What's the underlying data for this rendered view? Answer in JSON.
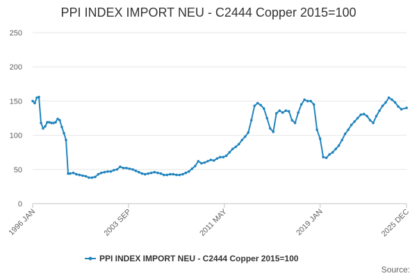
{
  "chart_data": {
    "type": "line",
    "title": "PPI INDEX IMPORT NEU - C2444 Copper 2015=100",
    "xlabel": "",
    "ylabel": "",
    "ylim": [
      0,
      250
    ],
    "y_ticks": [
      "0",
      "50",
      "100",
      "150",
      "200",
      "250"
    ],
    "x_tick_labels": [
      "1996 JAN",
      "2003 SEP",
      "2011 MAY",
      "2019 JAN",
      "2025 DEC"
    ],
    "x_tick_dates": [
      "1996-01",
      "2003-09",
      "2011-05",
      "2019-01",
      "2025-12"
    ],
    "x_range": [
      "1996-01",
      "2025-12"
    ],
    "grid": true,
    "legend_position": "bottom-center",
    "series_color": "#1f83bd",
    "series": [
      {
        "name": "PPI INDEX IMPORT NEU - C2444 Copper 2015=100",
        "points": [
          [
            "1996-01",
            150
          ],
          [
            "1996-03",
            147
          ],
          [
            "1996-05",
            155
          ],
          [
            "1996-07",
            156
          ],
          [
            "1996-09",
            118
          ],
          [
            "1996-11",
            110
          ],
          [
            "1997-01",
            113
          ],
          [
            "1997-03",
            119
          ],
          [
            "1997-05",
            119
          ],
          [
            "1997-07",
            118
          ],
          [
            "1997-09",
            118
          ],
          [
            "1997-11",
            119
          ],
          [
            "1998-01",
            124
          ],
          [
            "1998-03",
            122
          ],
          [
            "1998-05",
            112
          ],
          [
            "1998-07",
            103
          ],
          [
            "1998-09",
            93
          ],
          [
            "1998-11",
            44
          ],
          [
            "1999-01",
            44
          ],
          [
            "1999-04",
            45
          ],
          [
            "1999-07",
            43
          ],
          [
            "1999-10",
            42
          ],
          [
            "2000-01",
            41
          ],
          [
            "2000-04",
            40
          ],
          [
            "2000-07",
            38
          ],
          [
            "2000-10",
            38
          ],
          [
            "2001-01",
            39
          ],
          [
            "2001-04",
            43
          ],
          [
            "2001-07",
            45
          ],
          [
            "2001-10",
            46
          ],
          [
            "2002-01",
            47
          ],
          [
            "2002-04",
            47
          ],
          [
            "2002-07",
            49
          ],
          [
            "2002-10",
            50
          ],
          [
            "2003-01",
            54
          ],
          [
            "2003-04",
            52
          ],
          [
            "2003-07",
            52
          ],
          [
            "2003-10",
            51
          ],
          [
            "2004-01",
            50
          ],
          [
            "2004-04",
            48
          ],
          [
            "2004-07",
            46
          ],
          [
            "2004-10",
            44
          ],
          [
            "2005-01",
            43
          ],
          [
            "2005-04",
            44
          ],
          [
            "2005-07",
            45
          ],
          [
            "2005-10",
            46
          ],
          [
            "2006-01",
            45
          ],
          [
            "2006-04",
            44
          ],
          [
            "2006-07",
            42
          ],
          [
            "2006-10",
            42
          ],
          [
            "2007-01",
            43
          ],
          [
            "2007-04",
            43
          ],
          [
            "2007-07",
            42
          ],
          [
            "2007-10",
            42
          ],
          [
            "2008-01",
            43
          ],
          [
            "2008-04",
            45
          ],
          [
            "2008-07",
            47
          ],
          [
            "2008-10",
            51
          ],
          [
            "2009-01",
            55
          ],
          [
            "2009-04",
            62
          ],
          [
            "2009-07",
            59
          ],
          [
            "2009-10",
            60
          ],
          [
            "2010-01",
            62
          ],
          [
            "2010-04",
            64
          ],
          [
            "2010-07",
            63
          ],
          [
            "2010-10",
            66
          ],
          [
            "2011-01",
            68
          ],
          [
            "2011-04",
            68
          ],
          [
            "2011-07",
            70
          ],
          [
            "2011-10",
            75
          ],
          [
            "2012-01",
            80
          ],
          [
            "2012-04",
            83
          ],
          [
            "2012-07",
            87
          ],
          [
            "2012-10",
            93
          ],
          [
            "2013-01",
            98
          ],
          [
            "2013-04",
            104
          ],
          [
            "2013-07",
            122
          ],
          [
            "2013-10",
            143
          ],
          [
            "2014-01",
            147
          ],
          [
            "2014-04",
            144
          ],
          [
            "2014-07",
            139
          ],
          [
            "2014-10",
            125
          ],
          [
            "2015-01",
            110
          ],
          [
            "2015-04",
            105
          ],
          [
            "2015-07",
            132
          ],
          [
            "2015-10",
            136
          ],
          [
            "2016-01",
            133
          ],
          [
            "2016-04",
            136
          ],
          [
            "2016-07",
            135
          ],
          [
            "2016-10",
            122
          ],
          [
            "2017-01",
            118
          ],
          [
            "2017-04",
            133
          ],
          [
            "2017-07",
            145
          ],
          [
            "2017-10",
            152
          ],
          [
            "2018-01",
            150
          ],
          [
            "2018-04",
            150
          ],
          [
            "2018-07",
            145
          ],
          [
            "2018-10",
            108
          ],
          [
            "2019-01",
            95
          ],
          [
            "2019-04",
            68
          ],
          [
            "2019-07",
            67
          ],
          [
            "2019-10",
            72
          ],
          [
            "2020-01",
            75
          ],
          [
            "2020-04",
            80
          ],
          [
            "2020-07",
            85
          ],
          [
            "2020-10",
            93
          ],
          [
            "2021-01",
            102
          ],
          [
            "2021-04",
            108
          ],
          [
            "2021-07",
            115
          ],
          [
            "2021-10",
            120
          ],
          [
            "2022-01",
            125
          ],
          [
            "2022-04",
            130
          ],
          [
            "2022-07",
            131
          ],
          [
            "2022-10",
            128
          ],
          [
            "2023-01",
            122
          ],
          [
            "2023-04",
            118
          ],
          [
            "2023-07",
            128
          ],
          [
            "2023-10",
            136
          ],
          [
            "2024-01",
            143
          ],
          [
            "2024-04",
            148
          ],
          [
            "2024-07",
            155
          ],
          [
            "2024-10",
            152
          ],
          [
            "2025-01",
            148
          ],
          [
            "2025-04",
            142
          ],
          [
            "2025-07",
            138
          ],
          [
            "2025-12",
            140
          ]
        ]
      }
    ]
  },
  "source_label": "Source:"
}
